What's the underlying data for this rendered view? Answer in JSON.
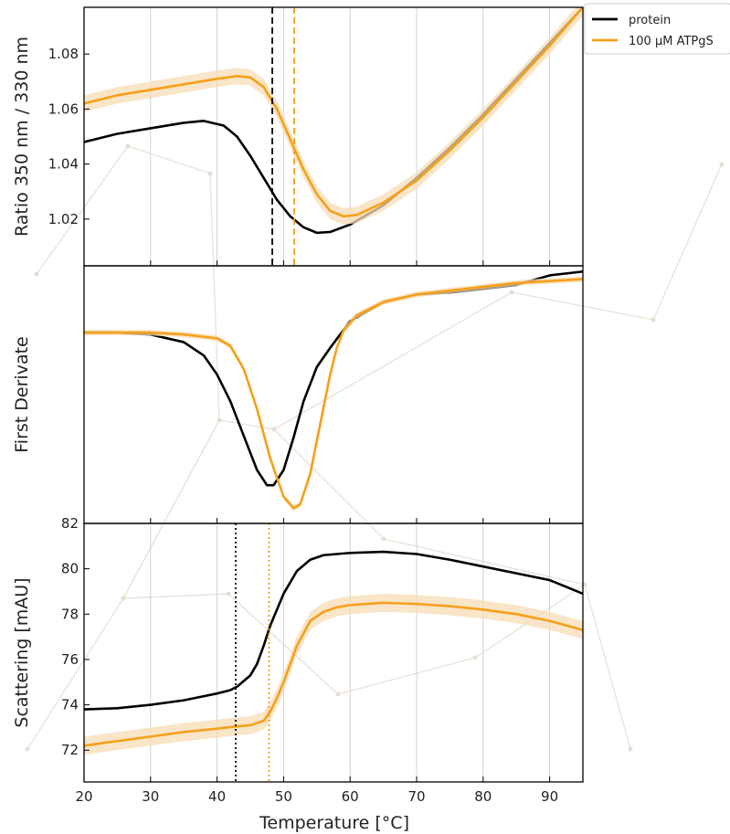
{
  "colors": {
    "protein": "#000000",
    "atp": "#f5a01a",
    "band": "#f7dcb4",
    "grid": "#c8c8c8"
  },
  "legend": {
    "items": [
      {
        "name": "protein",
        "color": "#000000"
      },
      {
        "name": "100 µM ATPgS",
        "color": "#f5a01a"
      }
    ],
    "placement": "outside top-right"
  },
  "chart_data": [
    {
      "type": "line",
      "panel": "top",
      "ylabel": "Ratio 350 nm / 330 nm",
      "xlim": [
        20,
        95
      ],
      "ylim": [
        1.003,
        1.097
      ],
      "yticks": [
        1.02,
        1.04,
        1.06,
        1.08
      ],
      "ytick_labels": [
        "1.02",
        "1.04",
        "1.06",
        "1.08"
      ],
      "grid": "vertical",
      "series": [
        {
          "name": "protein",
          "color": "#000000",
          "x": [
            20,
            25,
            30,
            35,
            38,
            41,
            43,
            45,
            47,
            49,
            51,
            53,
            55,
            57,
            60,
            65,
            70,
            75,
            80,
            85,
            90,
            95
          ],
          "y": [
            1.048,
            1.051,
            1.053,
            1.055,
            1.0557,
            1.054,
            1.05,
            1.043,
            1.035,
            1.027,
            1.021,
            1.017,
            1.015,
            1.0153,
            1.018,
            1.025,
            1.035,
            1.046,
            1.058,
            1.071,
            1.084,
            1.097
          ]
        },
        {
          "name": "100 µM ATPgS",
          "color": "#f5a01a",
          "band": 0.003,
          "x": [
            20,
            25,
            30,
            35,
            40,
            43,
            45,
            47,
            49,
            51,
            53,
            55,
            57,
            59,
            61,
            65,
            70,
            75,
            80,
            85,
            90,
            95
          ],
          "y": [
            1.062,
            1.065,
            1.067,
            1.069,
            1.071,
            1.072,
            1.0715,
            1.068,
            1.06,
            1.049,
            1.038,
            1.029,
            1.023,
            1.021,
            1.0215,
            1.026,
            1.034,
            1.045,
            1.057,
            1.07,
            1.083,
            1.097
          ]
        }
      ],
      "vlines": [
        {
          "x": 48.3,
          "color": "#000000",
          "style": "dashed"
        },
        {
          "x": 51.6,
          "color": "#f5a01a",
          "style": "dashed"
        }
      ]
    },
    {
      "type": "line",
      "panel": "middle",
      "ylabel": "First Derivate",
      "xlim": [
        20,
        95
      ],
      "ylim": [
        -1.0,
        0.35
      ],
      "yticks": [],
      "grid": "none",
      "series": [
        {
          "name": "protein",
          "color": "#000000",
          "x": [
            20,
            25,
            30,
            35,
            38,
            40,
            42,
            44,
            46,
            47.5,
            48.5,
            50,
            51.5,
            53,
            55,
            57,
            60,
            65,
            70,
            75,
            80,
            85,
            90,
            95
          ],
          "y": [
            0,
            0,
            -0.01,
            -0.05,
            -0.12,
            -0.22,
            -0.36,
            -0.54,
            -0.72,
            -0.8,
            -0.8,
            -0.72,
            -0.55,
            -0.36,
            -0.18,
            -0.08,
            0.06,
            0.16,
            0.2,
            0.21,
            0.23,
            0.25,
            0.3,
            0.32
          ]
        },
        {
          "name": "100 µM ATPgS",
          "color": "#f5a01a",
          "band": 0.015,
          "x": [
            20,
            25,
            30,
            35,
            40,
            42,
            44,
            46,
            48,
            50,
            51.5,
            52.5,
            54,
            55.5,
            57,
            58,
            59,
            61,
            65,
            70,
            75,
            80,
            85,
            90,
            95
          ],
          "y": [
            0,
            0,
            0,
            -0.01,
            -0.03,
            -0.07,
            -0.19,
            -0.4,
            -0.66,
            -0.86,
            -0.92,
            -0.9,
            -0.74,
            -0.48,
            -0.22,
            -0.08,
            0.01,
            0.09,
            0.16,
            0.2,
            0.22,
            0.24,
            0.26,
            0.27,
            0.28
          ]
        }
      ]
    },
    {
      "type": "line",
      "panel": "bottom",
      "ylabel": "Scattering [mAU]",
      "xlabel": "Temperature [°C]",
      "xlim": [
        20,
        95
      ],
      "ylim": [
        70.6,
        82.0
      ],
      "xticks": [
        20,
        30,
        40,
        50,
        60,
        70,
        80,
        90
      ],
      "xtick_labels": [
        "20",
        "30",
        "40",
        "50",
        "60",
        "70",
        "80",
        "90"
      ],
      "yticks": [
        72,
        74,
        76,
        78,
        80,
        82
      ],
      "ytick_labels": [
        "72",
        "74",
        "76",
        "78",
        "80",
        "82"
      ],
      "grid": "vertical",
      "series": [
        {
          "name": "protein",
          "color": "#000000",
          "x": [
            20,
            25,
            30,
            35,
            40,
            42,
            43,
            45,
            46,
            47,
            48,
            50,
            52,
            54,
            56,
            60,
            65,
            70,
            75,
            80,
            85,
            90,
            95
          ],
          "y": [
            73.8,
            73.85,
            74.0,
            74.2,
            74.5,
            74.65,
            74.8,
            75.3,
            75.8,
            76.6,
            77.5,
            78.9,
            79.9,
            80.4,
            80.6,
            80.7,
            80.75,
            80.65,
            80.4,
            80.1,
            79.8,
            79.5,
            78.9
          ]
        },
        {
          "name": "100 µM ATPgS",
          "color": "#f5a01a",
          "band": 0.4,
          "x": [
            20,
            25,
            30,
            35,
            40,
            43,
            45,
            47,
            48,
            49,
            50,
            52,
            54,
            56,
            58,
            60,
            65,
            70,
            75,
            80,
            85,
            90,
            95
          ],
          "y": [
            72.2,
            72.4,
            72.6,
            72.8,
            72.95,
            73.05,
            73.1,
            73.3,
            73.7,
            74.3,
            75.0,
            76.6,
            77.7,
            78.1,
            78.3,
            78.4,
            78.5,
            78.45,
            78.35,
            78.2,
            78.0,
            77.7,
            77.3
          ]
        }
      ],
      "vlines": [
        {
          "x": 42.8,
          "color": "#000000",
          "style": "dotted"
        },
        {
          "x": 47.8,
          "color": "#f5a01a",
          "style": "dotted"
        }
      ]
    }
  ]
}
